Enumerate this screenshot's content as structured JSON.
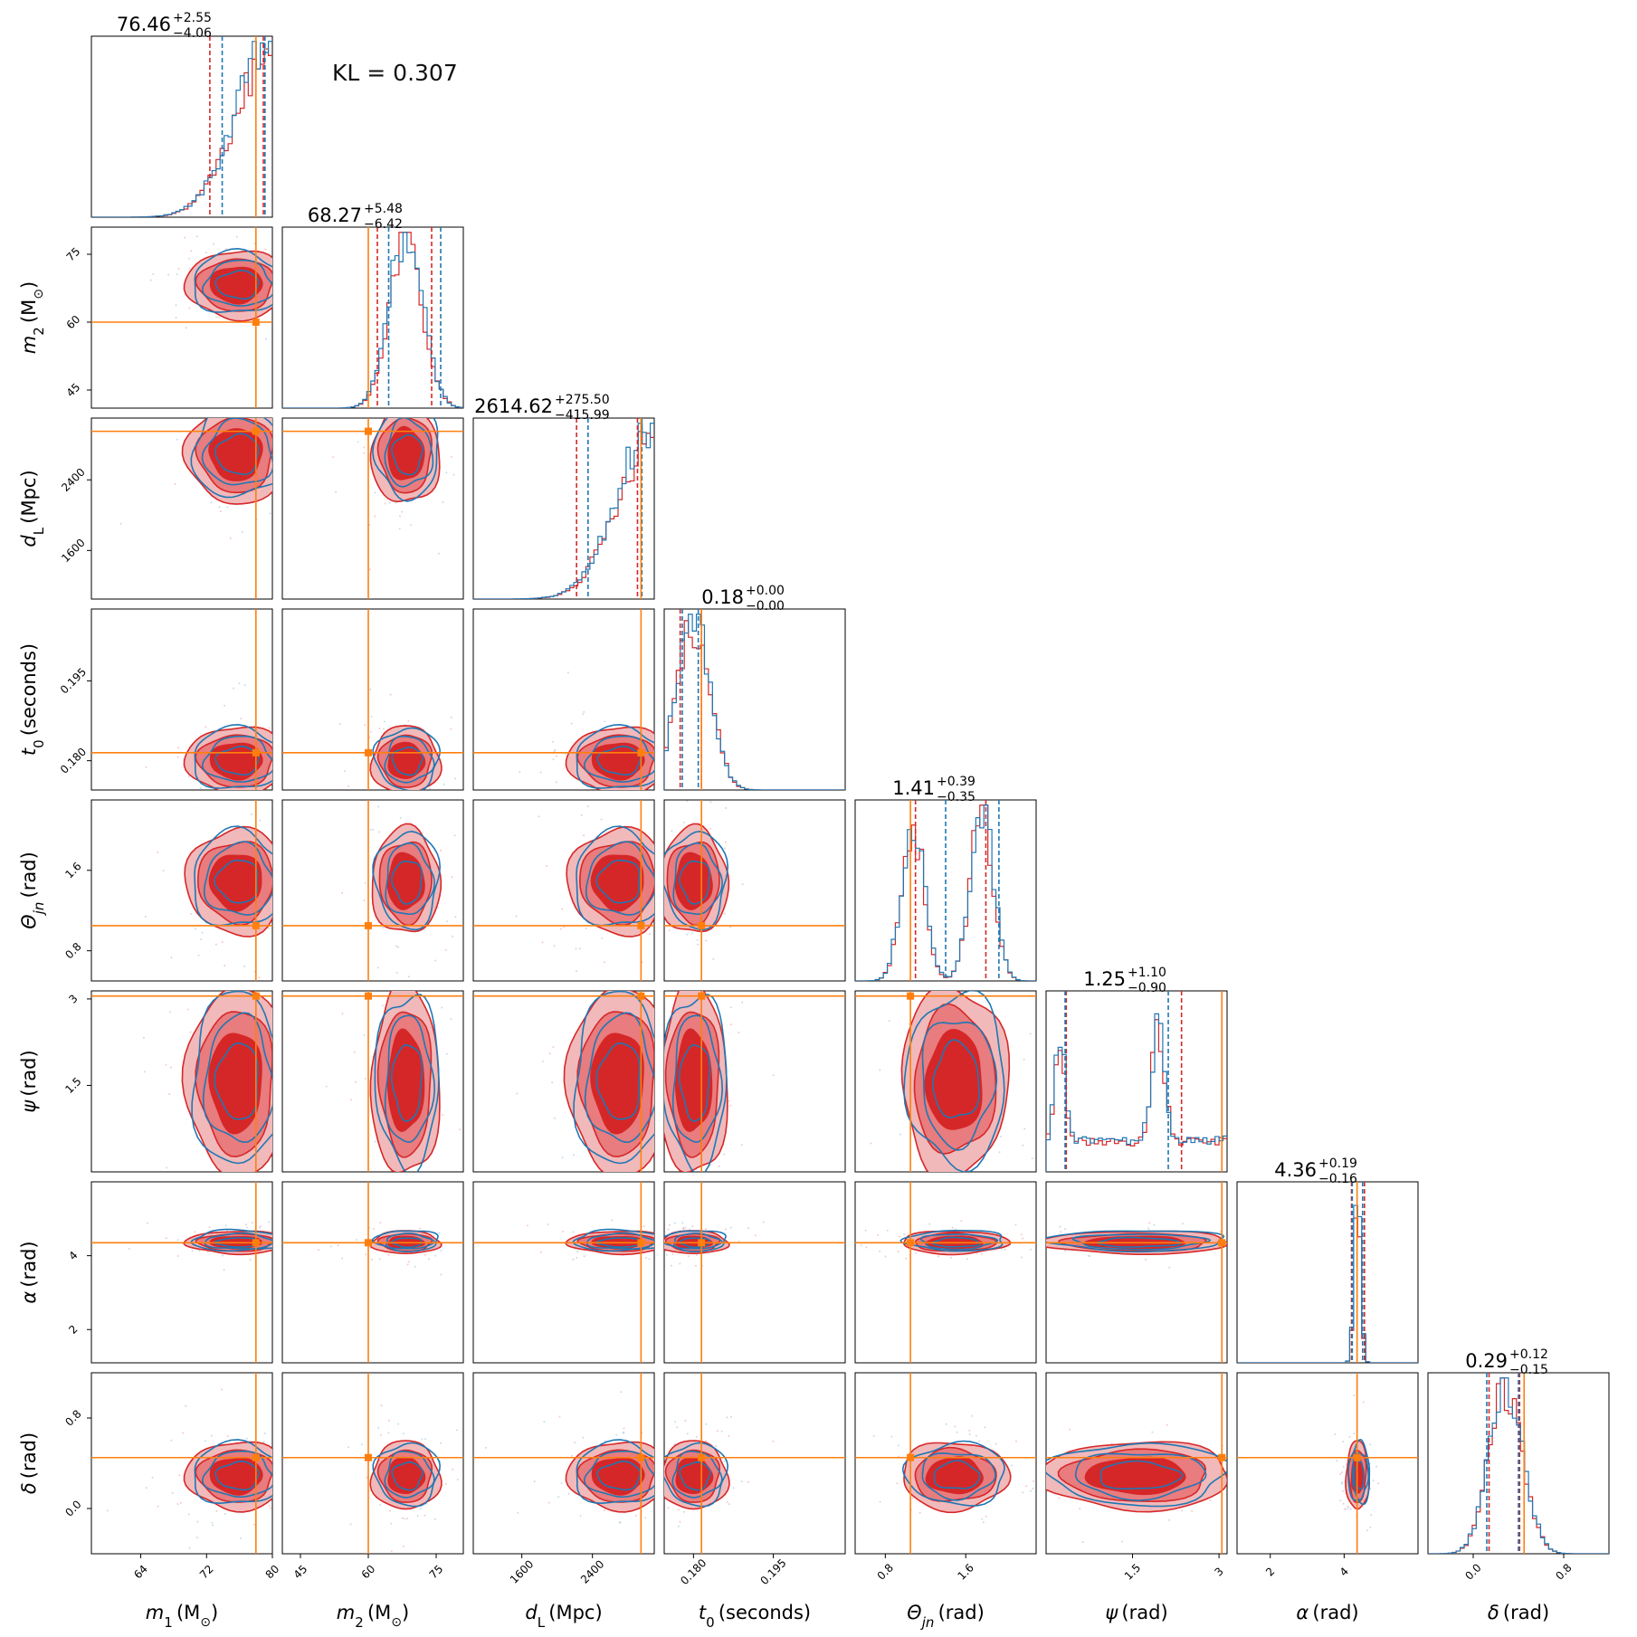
{
  "figure": {
    "kl_label": "KL = 0.307"
  },
  "colors": {
    "red": "#d62728",
    "red_fill_light": "#f1b9ba",
    "red_fill_mid": "#e87c7e",
    "blue": "#1f77b4",
    "truth": "#ff7f0e"
  },
  "chart_data": {
    "type": "corner",
    "legend": "none",
    "series": [
      {
        "color": "#d62728"
      },
      {
        "color": "#1f77b4"
      }
    ],
    "params": [
      {
        "key": "m1",
        "symbol": "m",
        "sub": "1",
        "sub_italic": false,
        "unit": "(M",
        "unit_sub": "⊙",
        "unit_close": ")",
        "range": [
          58,
          80
        ],
        "ticks": [
          64,
          72,
          80
        ],
        "truth": 78,
        "summary": {
          "median": "76.46",
          "plus": "+2.55",
          "minus": "−4.06"
        },
        "quantiles_red": [
          72.4,
          78.9
        ],
        "quantiles_blue": [
          73.9,
          79.1
        ],
        "skew": "right"
      },
      {
        "key": "m2",
        "symbol": "m",
        "sub": "2",
        "sub_italic": false,
        "unit": "(M",
        "unit_sub": "⊙",
        "unit_close": ")",
        "range": [
          41,
          81
        ],
        "ticks": [
          45,
          60,
          75
        ],
        "truth": 60,
        "summary": {
          "median": "68.27",
          "plus": "+5.48",
          "minus": "−6.42"
        },
        "quantiles_red": [
          62,
          74
        ],
        "quantiles_blue": [
          64.5,
          76
        ],
        "skew": "center"
      },
      {
        "key": "dL",
        "symbol": "d",
        "sub": "L",
        "sub_italic": false,
        "unit": "(Mpc)",
        "unit_sub": "",
        "unit_close": "",
        "range": [
          1050,
          3100
        ],
        "ticks": [
          1600,
          2400
        ],
        "truth": 2950,
        "summary": {
          "median": "2614.62",
          "plus": "+275.50",
          "minus": "−415.99"
        },
        "quantiles_red": [
          2220,
          2910
        ],
        "quantiles_blue": [
          2350,
          2960
        ],
        "skew": "right"
      },
      {
        "key": "t0",
        "symbol": "t",
        "sub": "0",
        "sub_italic": false,
        "unit": "(seconds)",
        "unit_sub": "",
        "unit_close": "",
        "range": [
          0.1745,
          0.2085
        ],
        "ticks": [
          0.18,
          0.195
        ],
        "tick_labels": [
          "0.180",
          "0.195"
        ],
        "truth": 0.1815,
        "summary": {
          "median": "0.18",
          "plus": "+0.00",
          "minus": "−0.00"
        },
        "quantiles_red": [
          0.1775,
          0.1815
        ],
        "quantiles_blue": [
          0.1779,
          0.1809
        ],
        "skew": "center"
      },
      {
        "key": "thetajn",
        "symbol": "Θ",
        "sub": "jn",
        "sub_italic": true,
        "unit": "(rad)",
        "unit_sub": "",
        "unit_close": "",
        "range": [
          0.5,
          2.3
        ],
        "ticks": [
          0.8,
          1.6
        ],
        "truth": 1.05,
        "summary": {
          "median": "1.41",
          "plus": "+0.39",
          "minus": "−0.35"
        },
        "quantiles_red": [
          1.1,
          1.8
        ],
        "quantiles_blue": [
          1.4,
          1.93
        ],
        "skew": "bimodal"
      },
      {
        "key": "psi",
        "symbol": "ψ",
        "sub": "",
        "sub_italic": false,
        "unit": "(rad)",
        "unit_sub": "",
        "unit_close": "",
        "range": [
          0,
          3.14
        ],
        "ticks": [
          1.5,
          3.0
        ],
        "truth": 3.05,
        "summary": {
          "median": "1.25",
          "plus": "+1.10",
          "minus": "−0.90"
        },
        "quantiles_red": [
          0.35,
          2.35
        ],
        "quantiles_blue": [
          0.33,
          2.12
        ],
        "skew": "bimodal-edges"
      },
      {
        "key": "alpha",
        "symbol": "α",
        "sub": "",
        "sub_italic": false,
        "unit": "(rad)",
        "unit_sub": "",
        "unit_close": "",
        "range": [
          1.1,
          6.0
        ],
        "ticks": [
          2,
          4
        ],
        "truth": 4.35,
        "summary": {
          "median": "4.36",
          "plus": "+0.19",
          "minus": "−0.16"
        },
        "quantiles_red": [
          4.2,
          4.55
        ],
        "quantiles_blue": [
          4.22,
          4.5
        ],
        "skew": "narrow"
      },
      {
        "key": "delta",
        "symbol": "δ",
        "sub": "",
        "sub_italic": false,
        "unit": "(rad)",
        "unit_sub": "",
        "unit_close": "",
        "range": [
          -0.4,
          1.2
        ],
        "ticks": [
          0.0,
          0.8
        ],
        "tick_labels": [
          "0.0",
          "0.8"
        ],
        "truth": 0.45,
        "summary": {
          "median": "0.29",
          "plus": "+0.12",
          "minus": "−0.15"
        },
        "quantiles_red": [
          0.14,
          0.41
        ],
        "quantiles_blue": [
          0.12,
          0.4
        ],
        "skew": "center"
      }
    ]
  }
}
